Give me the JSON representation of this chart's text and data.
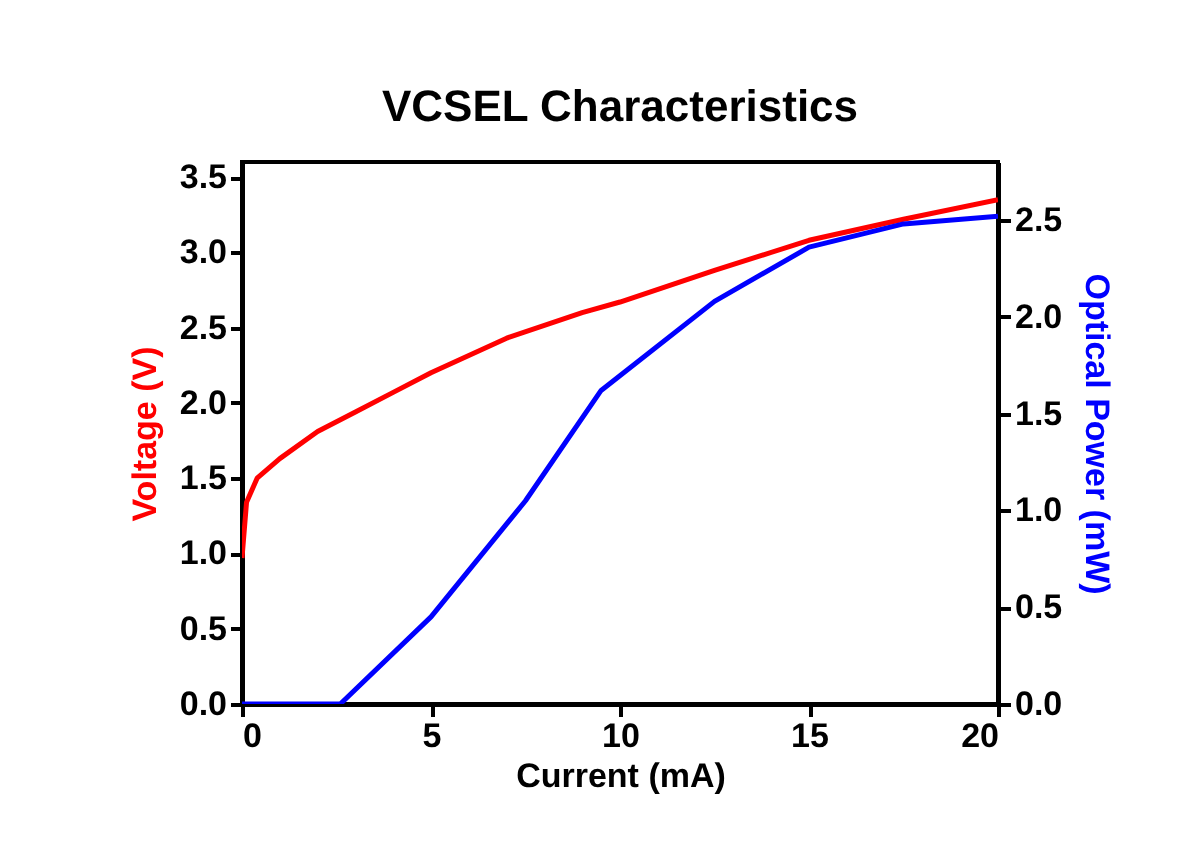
{
  "chart_data": {
    "type": "line",
    "title": "VCSEL Characteristics",
    "xlabel": "Current (mA)",
    "ylabel": "Voltage (V)",
    "y2label": "Optical Power (mW)",
    "xlim": [
      0,
      20
    ],
    "xticks": [
      0,
      5,
      10,
      15,
      20
    ],
    "ylim": [
      0,
      3.6
    ],
    "yticks": [
      {
        "value": 0,
        "label": "0.0"
      },
      0.5,
      {
        "value": 1,
        "label": "1.0"
      },
      1.5,
      {
        "value": 2,
        "label": "2.0"
      },
      2.5,
      {
        "value": 3,
        "label": "3.0"
      },
      3.5
    ],
    "y2lim": [
      0,
      2.8
    ],
    "y2ticks": [
      {
        "value": 0,
        "label": "0.0"
      },
      0.5,
      {
        "value": 1,
        "label": "1.0"
      },
      1.5,
      {
        "value": 2,
        "label": "2.0"
      },
      2.5
    ],
    "grid": false,
    "series": [
      {
        "color": "#ff0000",
        "x": [
          0,
          0.12,
          0.4,
          1,
          2,
          3,
          4,
          5,
          7,
          9,
          10,
          12.5,
          15,
          17.5,
          20
        ],
        "values": [
          0.97,
          1.34,
          1.5,
          1.63,
          1.81,
          1.94,
          2.07,
          2.2,
          2.43,
          2.6,
          2.67,
          2.88,
          3.08,
          3.22,
          3.35
        ]
      },
      {
        "color": "#0000ff",
        "axis": "y2",
        "x": [
          0,
          2.6,
          5,
          7.5,
          9.5,
          12.5,
          15,
          17.5,
          20
        ],
        "values": [
          0,
          0,
          0.45,
          1.05,
          1.62,
          2.08,
          2.36,
          2.48,
          2.52
        ]
      }
    ]
  }
}
